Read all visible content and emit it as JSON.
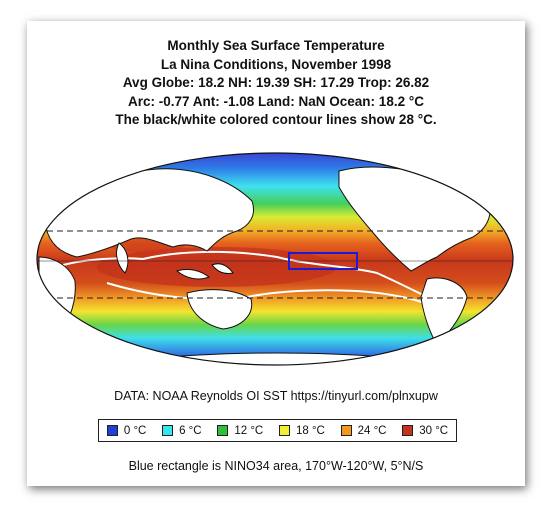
{
  "titles": {
    "line1": "Monthly Sea Surface Temperature",
    "line2": "La Nina Conditions, November 1998",
    "line3": "Avg Globe: 18.2  NH: 19.39  SH: 17.29  Trop: 26.82",
    "line4": "Arc: -0.77  Ant: -1.08  Land: NaN Ocean: 18.2 °C",
    "line5": "The black/white colored contour lines show 28 °C."
  },
  "source": "DATA: NOAA Reynolds OI SST https://tinyurl.com/plnxupw",
  "legend": [
    {
      "label": "0 °C",
      "color": "#1f3fd6"
    },
    {
      "label": "6 °C",
      "color": "#35e6ec"
    },
    {
      "label": "12 °C",
      "color": "#2fbf3a"
    },
    {
      "label": "18 °C",
      "color": "#f2ee30"
    },
    {
      "label": "24 °C",
      "color": "#f39a1e"
    },
    {
      "label": "30 °C",
      "color": "#c5321e"
    }
  ],
  "footnote": "Blue rectangle is NINO34 area, 170°W-120°W, 5°N/S",
  "map": {
    "projection": "Mollweide",
    "central_meridian": "180°",
    "contour_level": "28 °C",
    "nino34_box_color": "#1a1adb"
  }
}
